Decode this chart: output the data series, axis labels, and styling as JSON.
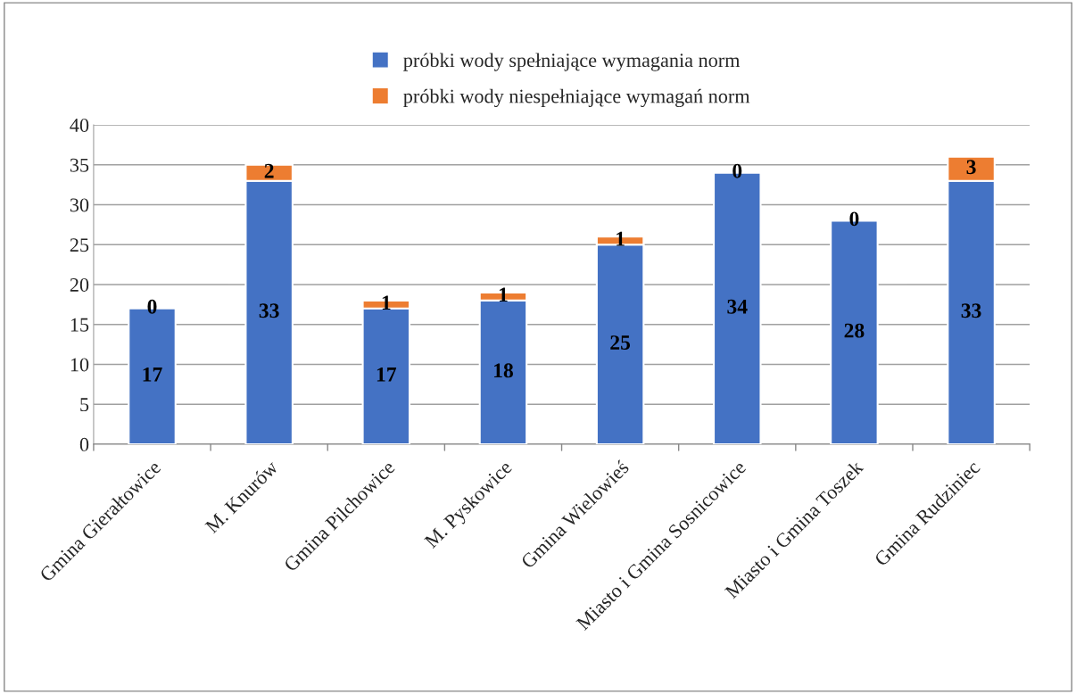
{
  "chart_data": {
    "type": "bar",
    "stacked": true,
    "categories": [
      "Gmina Gierałtowice",
      "M. Knurów",
      "Gmina Pilchowice",
      "M. Pyskowice",
      "Gmina Wielowieś",
      "Miasto i Gmina Sosnicowice",
      "Miasto i Gmina Toszek",
      "Gmina Rudziniec"
    ],
    "series": [
      {
        "name": "próbki wody spełniające wymagania norm",
        "color": "#4472c4",
        "values": [
          17,
          33,
          17,
          18,
          25,
          34,
          28,
          33
        ]
      },
      {
        "name": "próbki wody niespełniające wymagań norm",
        "color": "#ed7d31",
        "values": [
          0,
          2,
          1,
          1,
          1,
          0,
          0,
          3
        ]
      }
    ],
    "ylim": [
      0,
      40
    ],
    "yticks": [
      0,
      5,
      10,
      15,
      20,
      25,
      30,
      35,
      40
    ],
    "grid": "y",
    "legend": "top",
    "data_labels": true
  }
}
